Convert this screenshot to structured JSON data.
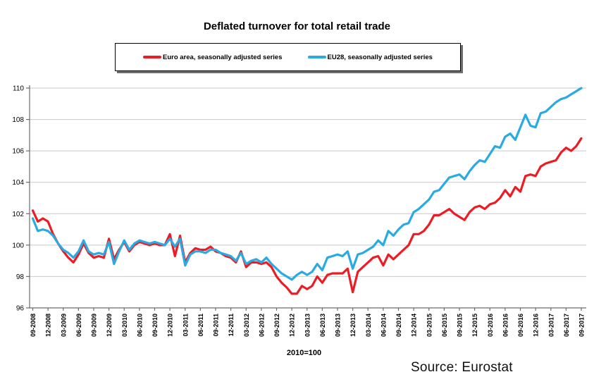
{
  "title": "Deflated turnover for total retail trade",
  "footnote": "2010=100",
  "source": "Source: Eurostat",
  "chart_data": {
    "type": "line",
    "title": "Deflated turnover for total retail trade",
    "subtitle": "",
    "xlabel": "",
    "ylabel": "",
    "index_note": "2010=100",
    "source": "Source: Eurostat",
    "grid": true,
    "legend_position": "top",
    "ylim": [
      96,
      110
    ],
    "y_ticks": [
      96,
      98,
      100,
      102,
      104,
      106,
      108,
      110
    ],
    "x_frequency": "monthly",
    "x_start": "09-2008",
    "x_end": "09-2017",
    "x_tick_labels": [
      "09-2008",
      "12-2008",
      "03-2009",
      "06-2009",
      "09-2009",
      "12-2009",
      "03-2010",
      "06-2010",
      "09-2010",
      "12-2010",
      "03-2011",
      "06-2011",
      "09-2011",
      "12-2011",
      "03-2012",
      "06-2012",
      "09-2012",
      "12-2012",
      "03-2013",
      "06-2013",
      "09-2013",
      "12-2013",
      "03-2014",
      "06-2014",
      "09-2014",
      "12-2014",
      "03-2015",
      "06-2015",
      "09-2015",
      "12-2015",
      "03-2016",
      "06-2016",
      "09-2016",
      "12-2016",
      "03-2017",
      "06-2017",
      "09-2017"
    ],
    "series": [
      {
        "name": "Euro area, seasonally adjusted series",
        "color": "#ed1c24",
        "values": [
          102.2,
          101.5,
          101.7,
          101.5,
          100.7,
          100.1,
          99.6,
          99.2,
          98.9,
          99.4,
          100.1,
          99.5,
          99.2,
          99.3,
          99.2,
          100.4,
          99.1,
          99.7,
          100.2,
          99.6,
          100.0,
          100.2,
          100.1,
          100.0,
          100.1,
          100.0,
          100.0,
          100.7,
          99.3,
          100.6,
          98.9,
          99.5,
          99.8,
          99.7,
          99.7,
          99.9,
          99.6,
          99.5,
          99.3,
          99.2,
          98.9,
          99.6,
          98.6,
          98.9,
          98.9,
          98.8,
          98.9,
          98.6,
          98.0,
          97.6,
          97.3,
          96.9,
          96.9,
          97.4,
          97.2,
          97.4,
          98.0,
          97.6,
          98.1,
          98.2,
          98.2,
          98.2,
          98.5,
          97.0,
          98.3,
          98.6,
          98.9,
          99.2,
          99.3,
          98.7,
          99.4,
          99.1,
          99.4,
          99.7,
          100.0,
          100.7,
          100.7,
          100.9,
          101.3,
          101.9,
          101.9,
          102.1,
          102.3,
          102.0,
          101.8,
          101.6,
          102.1,
          102.4,
          102.5,
          102.3,
          102.6,
          102.7,
          103.0,
          103.5,
          103.1,
          103.7,
          103.4,
          104.4,
          104.5,
          104.4,
          105.0,
          105.2,
          105.3,
          105.4,
          105.9,
          106.2,
          106.0,
          106.3,
          106.8
        ]
      },
      {
        "name": "EU28, seasonally adjusted series",
        "color": "#29abe2",
        "values": [
          101.7,
          100.9,
          101.0,
          100.9,
          100.6,
          100.1,
          99.7,
          99.5,
          99.2,
          99.6,
          100.3,
          99.6,
          99.4,
          99.5,
          99.4,
          100.2,
          98.8,
          99.6,
          100.3,
          99.7,
          100.1,
          100.3,
          100.2,
          100.1,
          100.2,
          100.1,
          100.0,
          100.4,
          99.9,
          100.4,
          98.7,
          99.4,
          99.6,
          99.6,
          99.5,
          99.7,
          99.7,
          99.5,
          99.4,
          99.3,
          99.0,
          99.5,
          98.8,
          99.0,
          99.1,
          98.9,
          99.2,
          98.8,
          98.5,
          98.2,
          98.0,
          97.8,
          98.1,
          98.3,
          98.1,
          98.3,
          98.8,
          98.4,
          99.2,
          99.3,
          99.4,
          99.3,
          99.6,
          98.5,
          99.4,
          99.5,
          99.7,
          99.9,
          100.3,
          100.0,
          100.9,
          100.6,
          101.0,
          101.3,
          101.4,
          102.1,
          102.3,
          102.6,
          102.9,
          103.4,
          103.5,
          103.9,
          104.3,
          104.4,
          104.5,
          104.2,
          104.7,
          105.1,
          105.4,
          105.3,
          105.8,
          106.3,
          106.2,
          106.9,
          107.1,
          106.7,
          107.5,
          108.3,
          107.6,
          107.5,
          108.4,
          108.5,
          108.8,
          109.1,
          109.3,
          109.4,
          109.6,
          109.8,
          110.0
        ]
      }
    ]
  }
}
